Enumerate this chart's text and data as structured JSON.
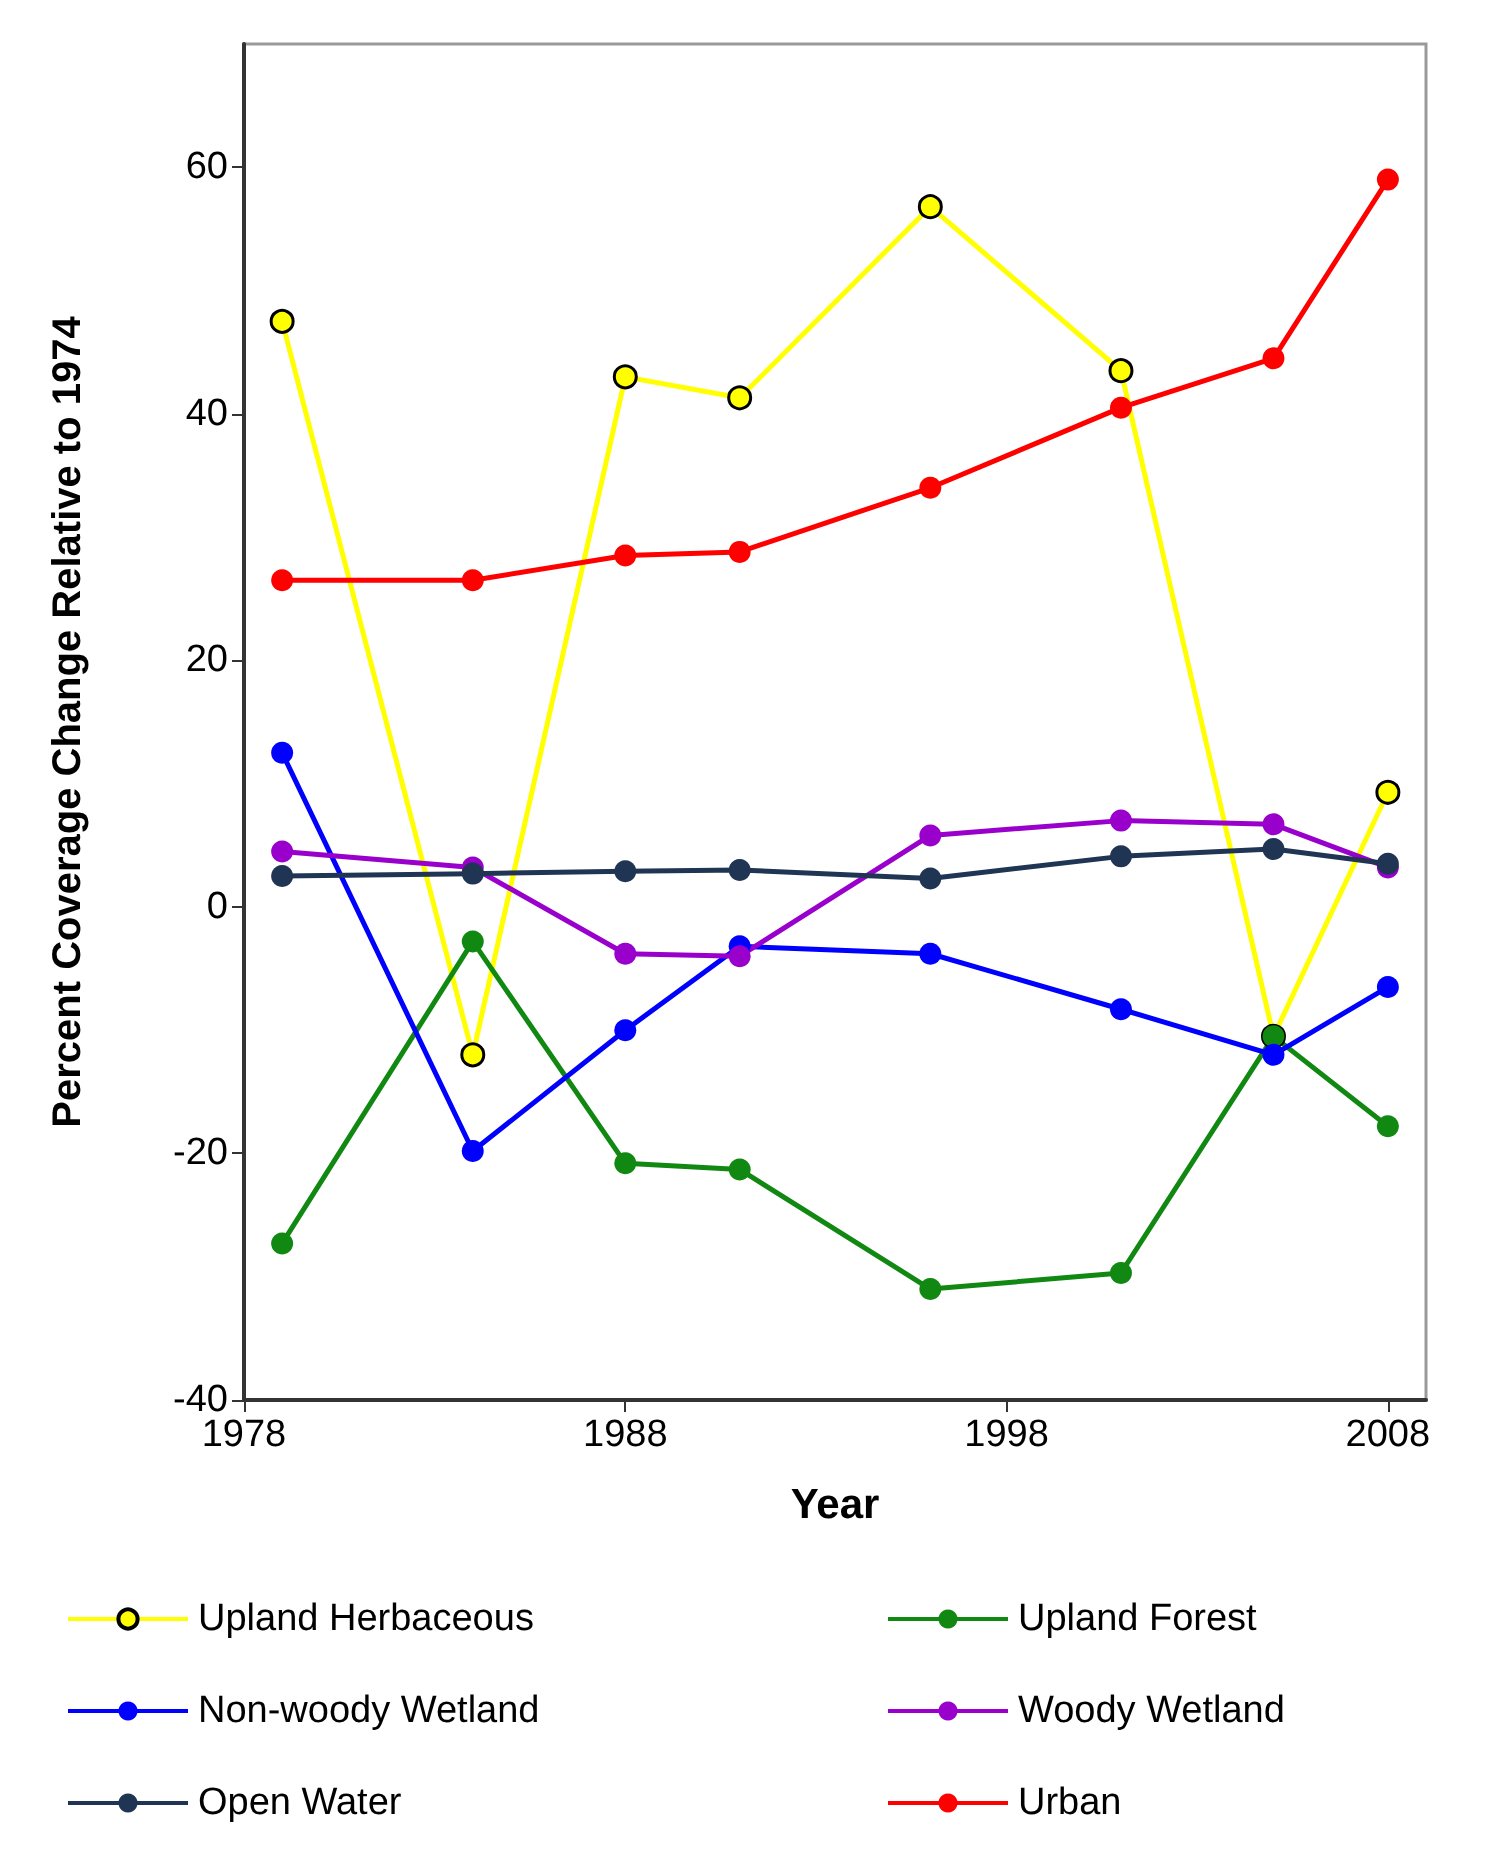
{
  "chart_data": {
    "type": "line",
    "xlabel": "Year",
    "ylabel": "Percent Coverage Change Relative to 1974",
    "x": [
      1979,
      1984,
      1988,
      1991,
      1996,
      2001,
      2005,
      2008
    ],
    "series": [
      {
        "name": "Upland Herbaceous",
        "color": "#ffff00",
        "values": [
          47.5,
          -12,
          43,
          41.3,
          56.8,
          43.5,
          -10.5,
          9.3
        ]
      },
      {
        "name": "Upland Forest",
        "color": "#118811",
        "values": [
          -27.3,
          -2.8,
          -20.8,
          -21.3,
          -31,
          -29.7,
          -10.5,
          -17.8
        ]
      },
      {
        "name": "Non-woody Wetland",
        "color": "#0000ff",
        "values": [
          12.5,
          -19.8,
          -10,
          -3.2,
          -3.8,
          -8.3,
          -12,
          -6.5
        ]
      },
      {
        "name": "Woody Wetland",
        "color": "#9900cc",
        "values": [
          4.5,
          3.2,
          -3.8,
          -4,
          5.8,
          7,
          6.7,
          3.2
        ]
      },
      {
        "name": "Open Water",
        "color": "#1f3553",
        "values": [
          2.5,
          2.7,
          2.9,
          3,
          2.3,
          4.1,
          4.7,
          3.5
        ]
      },
      {
        "name": "Urban",
        "color": "#ff0000",
        "values": [
          26.5,
          26.5,
          28.5,
          28.8,
          34,
          40.5,
          44.5,
          59
        ]
      }
    ],
    "xlim": [
      1978,
      2009
    ],
    "xticks": [
      1978,
      1988,
      1998,
      2008
    ],
    "ylim": [
      -40,
      70
    ],
    "yticks": [
      -40,
      -20,
      0,
      20,
      40,
      60
    ],
    "grid": false,
    "legend": "bottom",
    "marker": "circle",
    "line_style": "solid"
  }
}
